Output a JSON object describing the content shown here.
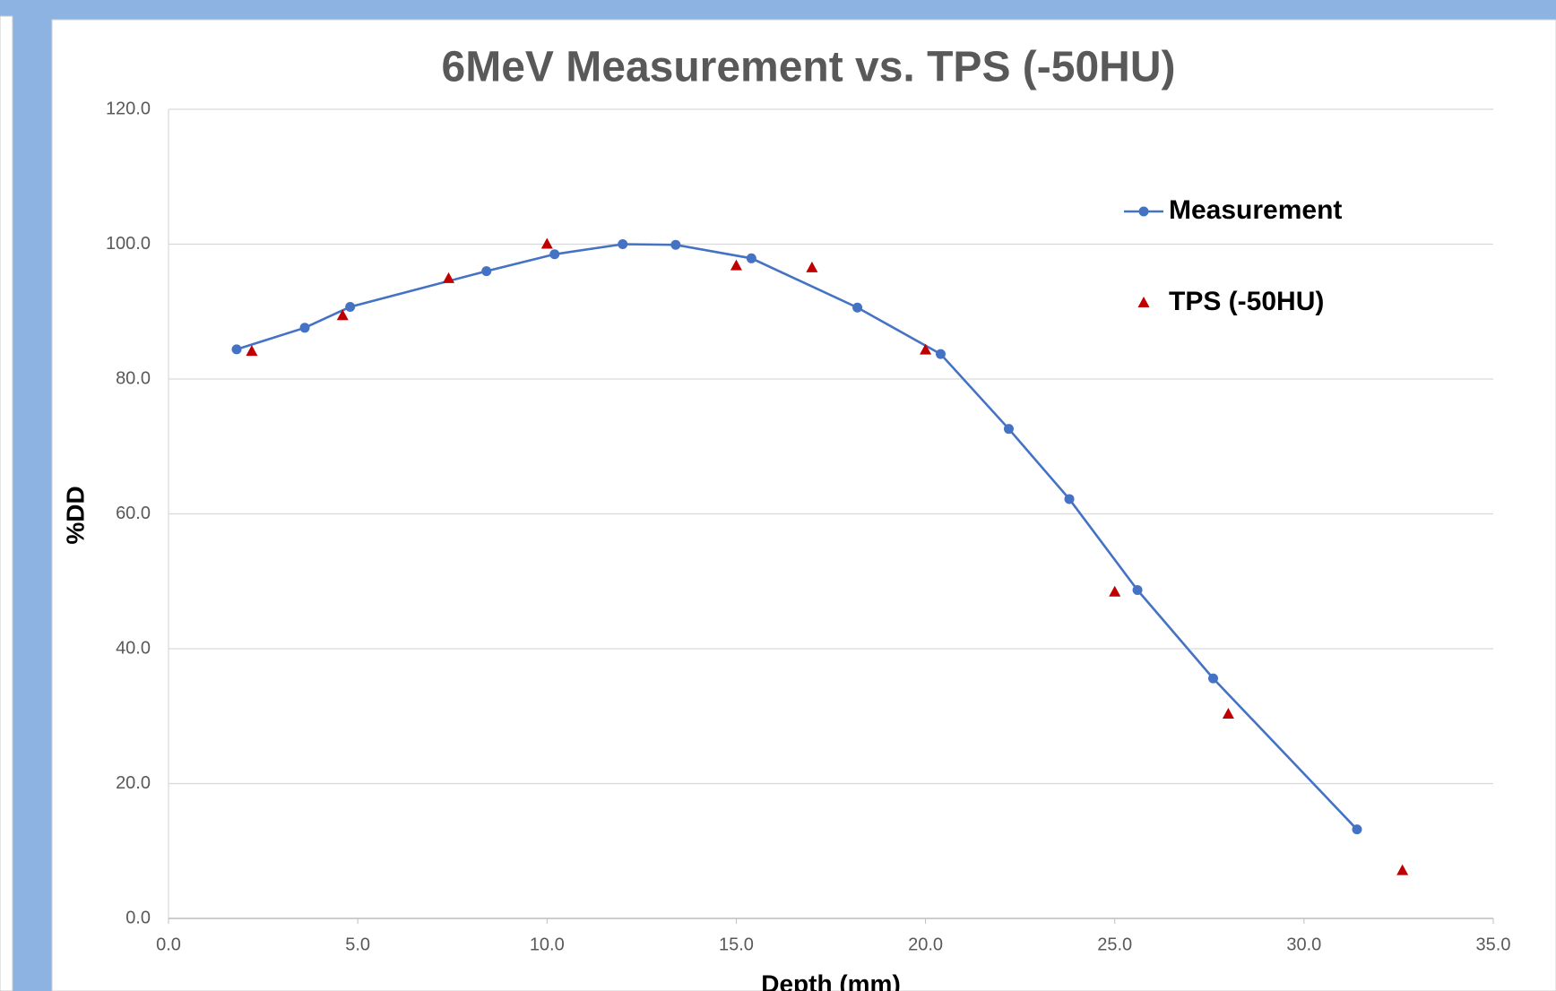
{
  "chart_data": {
    "type": "scatter",
    "title": "6MeV Measurement vs. TPS (-50HU)",
    "x_label": "Depth (mm)",
    "y_label": "%DD",
    "xlim": [
      0,
      35
    ],
    "ylim": [
      0,
      120
    ],
    "xticks": [
      {
        "value": 0,
        "label": "0.0"
      },
      {
        "value": 5,
        "label": "5.0"
      },
      {
        "value": 10,
        "label": "10.0"
      },
      {
        "value": 15,
        "label": "15.0"
      },
      {
        "value": 20,
        "label": "20.0"
      },
      {
        "value": 25,
        "label": "25.0"
      },
      {
        "value": 30,
        "label": "30.0"
      },
      {
        "value": 35,
        "label": "35.0"
      }
    ],
    "yticks": [
      {
        "value": 0,
        "label": "0.0"
      },
      {
        "value": 20,
        "label": "20.0"
      },
      {
        "value": 40,
        "label": "40.0"
      },
      {
        "value": 60,
        "label": "60.0"
      },
      {
        "value": 80,
        "label": "80.0"
      },
      {
        "value": 100,
        "label": "100.0"
      },
      {
        "value": 120,
        "label": "120.0"
      }
    ],
    "grid": true,
    "legend": "top-right",
    "series": [
      {
        "name": "Measurement",
        "color": "#4472c4",
        "line": true,
        "marker": "circle",
        "x": [
          1.8,
          3.6,
          4.8,
          8.4,
          10.2,
          12.0,
          13.4,
          15.4,
          18.2,
          20.4,
          22.2,
          23.8,
          25.6,
          27.6,
          31.4
        ],
        "values": [
          84.4,
          87.6,
          90.7,
          96.0,
          98.5,
          100.0,
          99.9,
          97.9,
          90.6,
          83.7,
          72.6,
          62.2,
          48.7,
          35.6,
          13.2
        ]
      },
      {
        "name": "TPS (-50HU)",
        "color": "#c00000",
        "line": false,
        "marker": "triangle",
        "x": [
          2.2,
          4.6,
          7.4,
          10.0,
          15.0,
          17.0,
          20.0,
          25.0,
          28.0,
          32.6
        ],
        "values": [
          84.1,
          89.4,
          94.9,
          100.0,
          96.8,
          96.5,
          84.3,
          48.4,
          30.3,
          7.1
        ]
      }
    ]
  }
}
